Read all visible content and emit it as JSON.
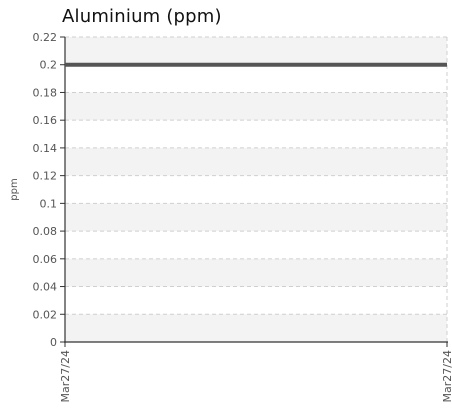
{
  "chart_data": {
    "type": "line",
    "title": "Aluminium (ppm)",
    "xlabel": "",
    "ylabel": "ppm",
    "ylim": [
      0,
      0.22
    ],
    "yticks": [
      0,
      0.02,
      0.04,
      0.06,
      0.08,
      0.1,
      0.12,
      0.14,
      0.16,
      0.18,
      0.2,
      0.22
    ],
    "ytick_labels": [
      "0",
      "0.02",
      "0.04",
      "0.06",
      "0.08",
      "0.1",
      "0.12",
      "0.14",
      "0.16",
      "0.18",
      "0.2",
      "0.22"
    ],
    "x": [
      "Mar27/24",
      "Mar27/24"
    ],
    "series": [
      {
        "values": [
          0.2,
          0.2
        ],
        "color": "#555555"
      }
    ],
    "grid": true,
    "band_color": "#f3f3f3"
  }
}
